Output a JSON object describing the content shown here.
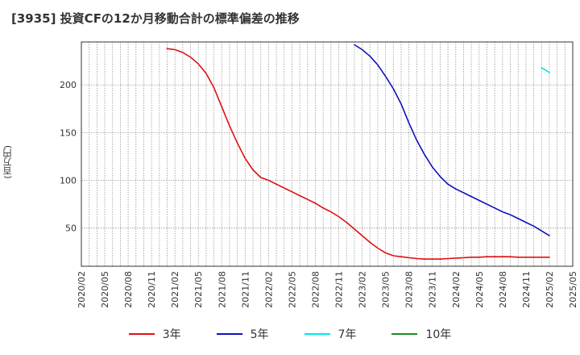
{
  "chart_data": {
    "type": "line",
    "title": "[3935]  投資CFの12か月移動合計の標準偏差の推移",
    "ylabel": "(百万円)",
    "xlabel": "",
    "ylim": [
      10,
      245
    ],
    "yticks": [
      50,
      100,
      150,
      200
    ],
    "x_ticks": [
      "2020/02",
      "2020/05",
      "2020/08",
      "2020/11",
      "2021/02",
      "2021/05",
      "2021/08",
      "2021/11",
      "2022/02",
      "2022/05",
      "2022/08",
      "2022/11",
      "2023/02",
      "2023/05",
      "2023/08",
      "2023/11",
      "2024/02",
      "2024/05",
      "2024/08",
      "2024/11",
      "2025/02",
      "2025/05"
    ],
    "grid": true,
    "legend": "bottom",
    "series": [
      {
        "name": "3年",
        "color": "#dd1111",
        "x": [
          "2021/01",
          "2021/02",
          "2021/03",
          "2021/04",
          "2021/05",
          "2021/06",
          "2021/07",
          "2021/08",
          "2021/09",
          "2021/10",
          "2021/11",
          "2021/12",
          "2022/01",
          "2022/02",
          "2022/03",
          "2022/04",
          "2022/05",
          "2022/06",
          "2022/07",
          "2022/08",
          "2022/09",
          "2022/10",
          "2022/11",
          "2022/12",
          "2023/01",
          "2023/02",
          "2023/03",
          "2023/04",
          "2023/05",
          "2023/06",
          "2023/07",
          "2023/08",
          "2023/09",
          "2023/10",
          "2023/11",
          "2023/12",
          "2024/01",
          "2024/02",
          "2024/03",
          "2024/04",
          "2024/05",
          "2024/06",
          "2024/07",
          "2024/08",
          "2024/09",
          "2024/10",
          "2024/11",
          "2024/12",
          "2025/01",
          "2025/02"
        ],
        "values": [
          238,
          237,
          234,
          229,
          222,
          212,
          197,
          177,
          157,
          139,
          123,
          111,
          103,
          100,
          96,
          92,
          88,
          84,
          80,
          76,
          71,
          67,
          62,
          56,
          49,
          42,
          35,
          29,
          24,
          21,
          20,
          19,
          18,
          17.5,
          17.5,
          17.5,
          18,
          18.5,
          19,
          19.5,
          19.5,
          20,
          20,
          20,
          20,
          19.5,
          19.5,
          19.5,
          19.5,
          19.5
        ]
      },
      {
        "name": "5年",
        "color": "#1111bb",
        "x": [
          "2023/01",
          "2023/02",
          "2023/03",
          "2023/04",
          "2023/05",
          "2023/06",
          "2023/07",
          "2023/08",
          "2023/09",
          "2023/10",
          "2023/11",
          "2023/12",
          "2024/01",
          "2024/02",
          "2024/03",
          "2024/04",
          "2024/05",
          "2024/06",
          "2024/07",
          "2024/08",
          "2024/09",
          "2024/10",
          "2024/11",
          "2024/12",
          "2025/01",
          "2025/02"
        ],
        "values": [
          242,
          237,
          230,
          221,
          209,
          196,
          180,
          160,
          142,
          127,
          114,
          104,
          96,
          91,
          87,
          83,
          79,
          75,
          71,
          67,
          64,
          60,
          56,
          52,
          47,
          42
        ]
      },
      {
        "name": "7年",
        "color": "#00e5ee",
        "x": [
          "2025/01",
          "2025/02"
        ],
        "values": [
          218,
          213
        ]
      },
      {
        "name": "10年",
        "color": "#228b22",
        "x": [],
        "values": []
      }
    ]
  }
}
